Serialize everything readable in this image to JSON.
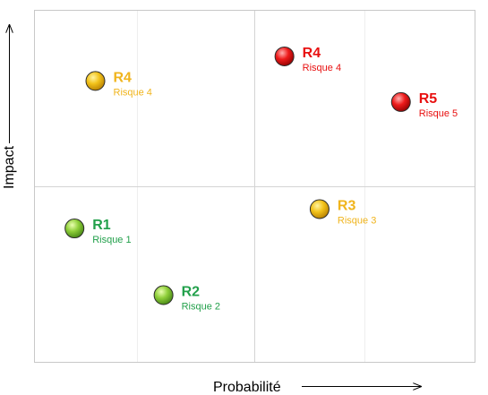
{
  "chart_data": {
    "type": "scatter",
    "xlabel": "Probabilité",
    "ylabel": "Impact",
    "xlim": [
      0,
      4
    ],
    "ylim": [
      0,
      2
    ],
    "grid": true,
    "quadrants": 4,
    "colors": {
      "green": "#22a04b",
      "amber": "#f0b41c",
      "red": "#e81010"
    },
    "points": [
      {
        "id": "R4",
        "name": "Risque 4",
        "x": 0.55,
        "y": 1.6,
        "level": "amber"
      },
      {
        "id": "R4",
        "name": "Risque 4",
        "x": 2.27,
        "y": 1.74,
        "level": "red"
      },
      {
        "id": "R5",
        "name": "Risque 5",
        "x": 3.33,
        "y": 1.48,
        "level": "red"
      },
      {
        "id": "R3",
        "name": "Risque 3",
        "x": 2.59,
        "y": 0.87,
        "level": "amber"
      },
      {
        "id": "R1",
        "name": "Risque 1",
        "x": 0.36,
        "y": 0.76,
        "level": "green"
      },
      {
        "id": "R2",
        "name": "Risque 2",
        "x": 1.17,
        "y": 0.38,
        "level": "green"
      }
    ]
  }
}
